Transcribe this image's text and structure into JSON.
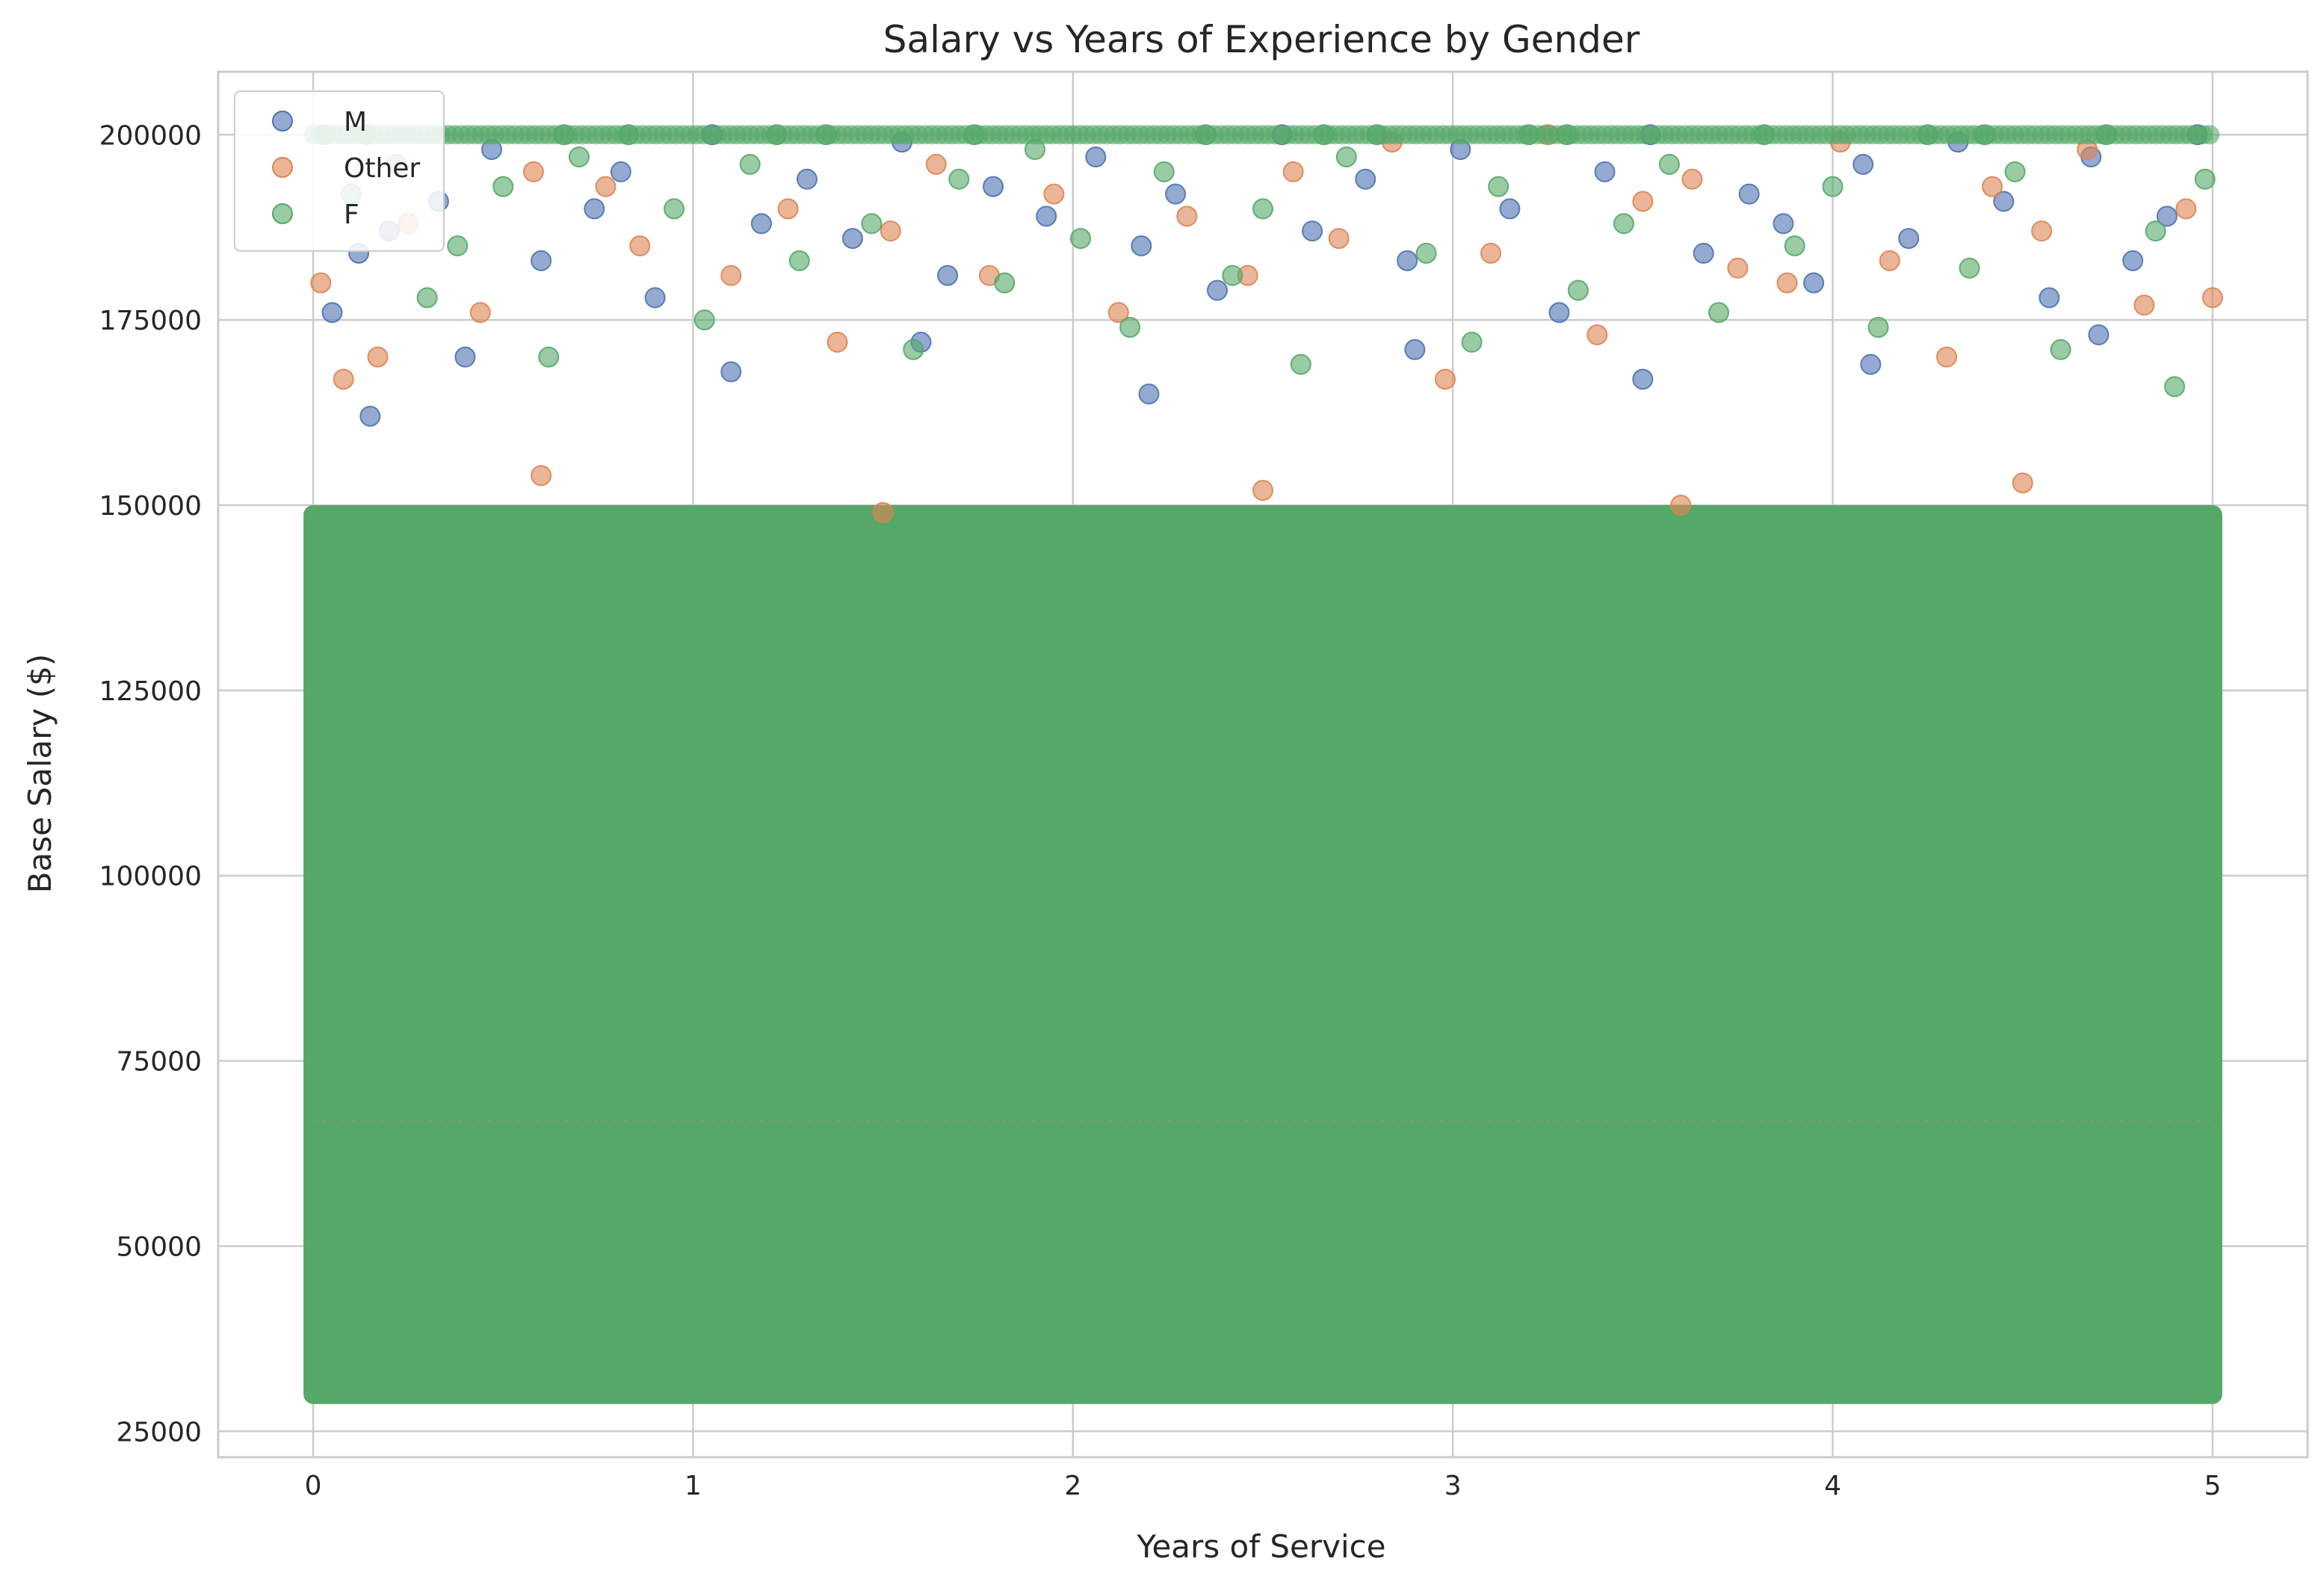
{
  "chart_data": {
    "type": "scatter",
    "title": "Salary vs Years of Experience by Gender",
    "xlabel": "Years of Service",
    "ylabel": "Base Salary ($)",
    "xlim": [
      -0.25,
      5.25
    ],
    "ylim": [
      21500,
      208500
    ],
    "x_ticks": [
      0,
      1,
      2,
      3,
      4,
      5
    ],
    "y_ticks": [
      25000,
      50000,
      75000,
      100000,
      125000,
      150000,
      175000,
      200000
    ],
    "x_tick_labels": [
      "0",
      "1",
      "2",
      "3",
      "4",
      "5"
    ],
    "y_tick_labels": [
      "25000",
      "50000",
      "75000",
      "100000",
      "125000",
      "150000",
      "175000",
      "200000"
    ],
    "grid": true,
    "legend_position": "top-left",
    "x_range": [
      0,
      5
    ],
    "salary_floor": 30000,
    "salary_cap": 200000,
    "dense_band_top": 150000,
    "series": [
      {
        "name": "M",
        "color": "#4C72B0",
        "alpha": 0.6,
        "points": [
          [
            0.05,
            176000
          ],
          [
            0.12,
            184000
          ],
          [
            0.2,
            187000
          ],
          [
            0.33,
            191000
          ],
          [
            0.47,
            198000
          ],
          [
            0.6,
            183000
          ],
          [
            0.74,
            190000
          ],
          [
            0.81,
            195000
          ],
          [
            0.9,
            178000
          ],
          [
            1.05,
            200000
          ],
          [
            1.18,
            188000
          ],
          [
            1.3,
            194000
          ],
          [
            1.42,
            186000
          ],
          [
            1.55,
            199000
          ],
          [
            1.67,
            181000
          ],
          [
            1.79,
            193000
          ],
          [
            1.93,
            189000
          ],
          [
            2.06,
            197000
          ],
          [
            2.18,
            185000
          ],
          [
            2.27,
            192000
          ],
          [
            2.38,
            179000
          ],
          [
            2.55,
            200000
          ],
          [
            2.63,
            187000
          ],
          [
            2.77,
            194000
          ],
          [
            2.88,
            183000
          ],
          [
            3.02,
            198000
          ],
          [
            3.15,
            190000
          ],
          [
            3.28,
            176000
          ],
          [
            3.4,
            195000
          ],
          [
            3.52,
            200000
          ],
          [
            3.66,
            184000
          ],
          [
            3.78,
            192000
          ],
          [
            3.87,
            188000
          ],
          [
            3.95,
            180000
          ],
          [
            4.08,
            196000
          ],
          [
            4.2,
            186000
          ],
          [
            4.33,
            199000
          ],
          [
            4.45,
            191000
          ],
          [
            4.57,
            178000
          ],
          [
            4.68,
            197000
          ],
          [
            4.79,
            183000
          ],
          [
            4.88,
            189000
          ],
          [
            4.96,
            200000
          ],
          [
            0.15,
            162000
          ],
          [
            0.4,
            170000
          ],
          [
            1.1,
            168000
          ],
          [
            1.6,
            172000
          ],
          [
            2.2,
            165000
          ],
          [
            2.9,
            171000
          ],
          [
            3.5,
            167000
          ],
          [
            4.1,
            169000
          ],
          [
            4.7,
            173000
          ]
        ]
      },
      {
        "name": "Other",
        "color": "#DD8452",
        "alpha": 0.6,
        "points": [
          [
            0.02,
            180000
          ],
          [
            0.08,
            167000
          ],
          [
            0.17,
            170000
          ],
          [
            0.25,
            188000
          ],
          [
            0.44,
            176000
          ],
          [
            0.58,
            195000
          ],
          [
            0.77,
            193000
          ],
          [
            0.86,
            185000
          ],
          [
            1.1,
            181000
          ],
          [
            1.25,
            190000
          ],
          [
            1.38,
            172000
          ],
          [
            1.52,
            187000
          ],
          [
            1.64,
            196000
          ],
          [
            1.78,
            181000
          ],
          [
            1.95,
            192000
          ],
          [
            2.12,
            176000
          ],
          [
            2.3,
            189000
          ],
          [
            2.46,
            181000
          ],
          [
            2.58,
            195000
          ],
          [
            2.7,
            186000
          ],
          [
            2.84,
            199000
          ],
          [
            2.98,
            167000
          ],
          [
            3.1,
            184000
          ],
          [
            3.25,
            200000
          ],
          [
            3.38,
            173000
          ],
          [
            3.5,
            191000
          ],
          [
            3.63,
            194000
          ],
          [
            3.75,
            182000
          ],
          [
            3.88,
            180000
          ],
          [
            4.02,
            199000
          ],
          [
            4.15,
            183000
          ],
          [
            4.3,
            170000
          ],
          [
            4.42,
            193000
          ],
          [
            4.55,
            187000
          ],
          [
            4.67,
            198000
          ],
          [
            4.82,
            177000
          ],
          [
            4.93,
            190000
          ],
          [
            5.0,
            178000
          ],
          [
            0.6,
            154000
          ],
          [
            1.5,
            149000
          ],
          [
            2.5,
            152000
          ],
          [
            3.6,
            150000
          ],
          [
            4.5,
            153000
          ]
        ]
      },
      {
        "name": "F",
        "color": "#55A868",
        "alpha": 0.6,
        "points": [
          [
            0.03,
            200000
          ],
          [
            0.1,
            192000
          ],
          [
            0.22,
            196000
          ],
          [
            0.3,
            178000
          ],
          [
            0.38,
            185000
          ],
          [
            0.5,
            193000
          ],
          [
            0.62,
            170000
          ],
          [
            0.7,
            197000
          ],
          [
            0.83,
            200000
          ],
          [
            0.95,
            190000
          ],
          [
            1.03,
            175000
          ],
          [
            1.15,
            196000
          ],
          [
            1.28,
            183000
          ],
          [
            1.35,
            200000
          ],
          [
            1.47,
            188000
          ],
          [
            1.58,
            171000
          ],
          [
            1.7,
            194000
          ],
          [
            1.82,
            180000
          ],
          [
            1.9,
            198000
          ],
          [
            2.02,
            186000
          ],
          [
            2.15,
            174000
          ],
          [
            2.24,
            195000
          ],
          [
            2.35,
            200000
          ],
          [
            2.42,
            181000
          ],
          [
            2.5,
            190000
          ],
          [
            2.6,
            169000
          ],
          [
            2.72,
            197000
          ],
          [
            2.8,
            200000
          ],
          [
            2.93,
            184000
          ],
          [
            3.05,
            172000
          ],
          [
            3.12,
            193000
          ],
          [
            3.2,
            200000
          ],
          [
            3.33,
            179000
          ],
          [
            3.45,
            188000
          ],
          [
            3.57,
            196000
          ],
          [
            3.7,
            176000
          ],
          [
            3.82,
            200000
          ],
          [
            3.9,
            185000
          ],
          [
            4.0,
            193000
          ],
          [
            4.12,
            174000
          ],
          [
            4.25,
            200000
          ],
          [
            4.36,
            182000
          ],
          [
            4.48,
            195000
          ],
          [
            4.6,
            171000
          ],
          [
            4.72,
            200000
          ],
          [
            4.85,
            187000
          ],
          [
            4.9,
            166000
          ],
          [
            4.98,
            194000
          ],
          [
            0.14,
            200000
          ],
          [
            0.66,
            200000
          ],
          [
            1.22,
            200000
          ],
          [
            1.74,
            200000
          ],
          [
            2.66,
            200000
          ],
          [
            3.3,
            200000
          ],
          [
            4.4,
            200000
          ]
        ]
      }
    ]
  }
}
